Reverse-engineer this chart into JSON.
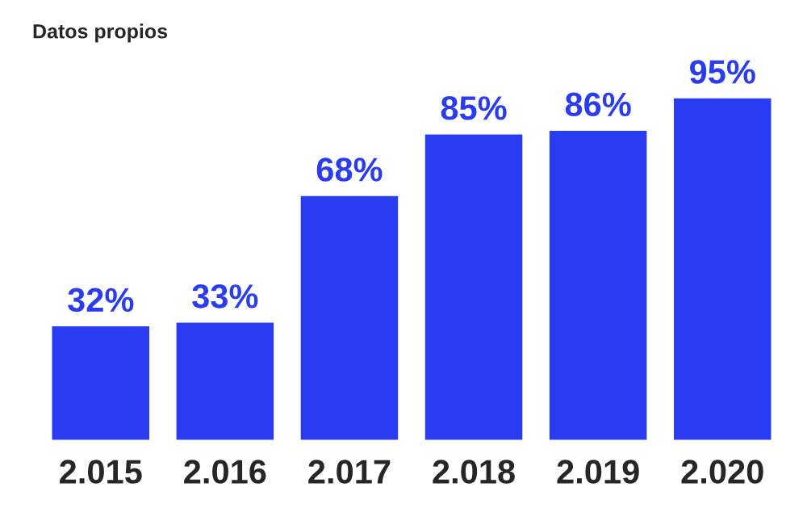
{
  "chart_data": {
    "type": "bar",
    "title": "Datos propios",
    "categories": [
      "2.015",
      "2.016",
      "2.017",
      "2.018",
      "2.019",
      "2.020"
    ],
    "values": [
      32,
      33,
      68,
      85,
      86,
      95
    ],
    "value_labels": [
      "32%",
      "33%",
      "68%",
      "85%",
      "86%",
      "95%"
    ],
    "color": "#2a3cf2",
    "grid": false,
    "legend": false
  }
}
